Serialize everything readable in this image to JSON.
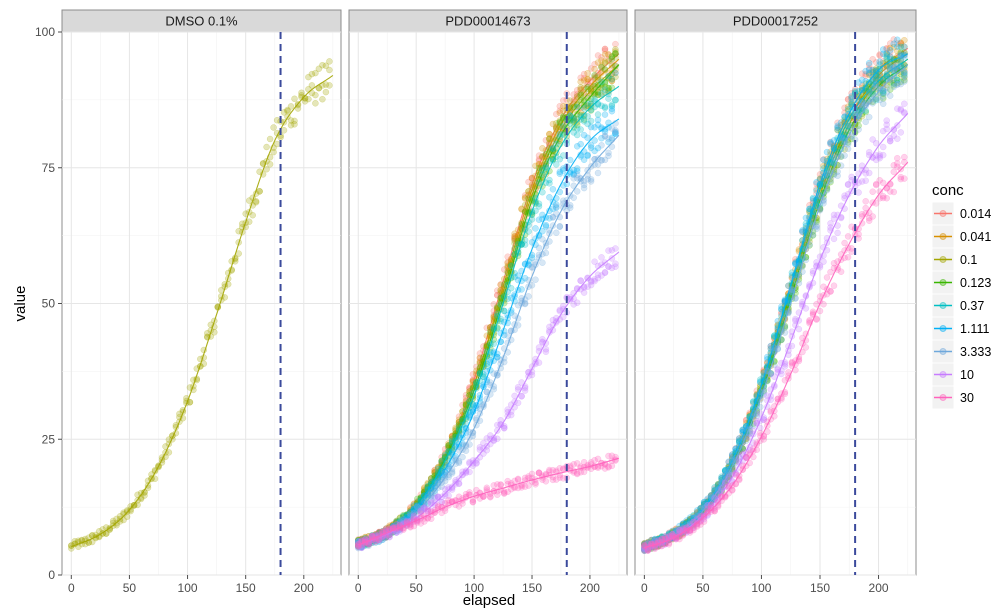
{
  "chart_data": {
    "type": "scatter",
    "title": "",
    "xlabel": "elapsed",
    "ylabel": "value",
    "xlim": [
      -8,
      232
    ],
    "ylim": [
      0,
      100
    ],
    "x_ticks": [
      0,
      50,
      100,
      150,
      200
    ],
    "y_ticks": [
      0,
      25,
      50,
      75,
      100
    ],
    "x_tick_labels": [
      "0",
      "50",
      "100",
      "150",
      "200"
    ],
    "y_tick_labels": [
      "0",
      "25",
      "50",
      "75",
      "100"
    ],
    "grid": true,
    "vline_x": 180,
    "vline_color": "#3b4a9c",
    "legend": {
      "title": "conc",
      "position": "right",
      "entries": [
        {
          "label": "0.014",
          "color": "#F8766D"
        },
        {
          "label": "0.041",
          "color": "#D89000"
        },
        {
          "label": "0.1",
          "color": "#A3A500"
        },
        {
          "label": "0.123",
          "color": "#39B600"
        },
        {
          "label": "0.37",
          "color": "#00BFC4"
        },
        {
          "label": "1.111",
          "color": "#00B0F6"
        },
        {
          "label": "3.333",
          "color": "#6FA8DC"
        },
        {
          "label": "10",
          "color": "#C77CFF"
        },
        {
          "label": "30",
          "color": "#FF62BC"
        }
      ]
    },
    "panels": [
      {
        "strip": "DMSO 0.1%",
        "series": [
          {
            "conc": "0.1",
            "color": "#A3A500",
            "fit": [
              [
                0,
                5.2
              ],
              [
                25,
                7.5
              ],
              [
                50,
                12
              ],
              [
                75,
                20
              ],
              [
                100,
                32
              ],
              [
                125,
                48
              ],
              [
                150,
                65
              ],
              [
                175,
                80
              ],
              [
                200,
                88
              ],
              [
                225,
                92
              ]
            ]
          }
        ]
      },
      {
        "strip": "PDD00014673",
        "series": [
          {
            "conc": "0.014",
            "color": "#F8766D",
            "fit": [
              [
                0,
                5.8
              ],
              [
                25,
                8.0
              ],
              [
                50,
                13
              ],
              [
                75,
                22
              ],
              [
                100,
                36
              ],
              [
                125,
                54
              ],
              [
                150,
                72
              ],
              [
                175,
                84
              ],
              [
                200,
                91
              ],
              [
                225,
                96
              ]
            ]
          },
          {
            "conc": "0.041",
            "color": "#D89000",
            "fit": [
              [
                0,
                5.8
              ],
              [
                25,
                8.0
              ],
              [
                50,
                13
              ],
              [
                75,
                22
              ],
              [
                100,
                35
              ],
              [
                125,
                53
              ],
              [
                150,
                71
              ],
              [
                175,
                83
              ],
              [
                200,
                90
              ],
              [
                225,
                95
              ]
            ]
          },
          {
            "conc": "0.1",
            "color": "#A3A500",
            "fit": [
              [
                0,
                5.7
              ],
              [
                25,
                7.9
              ],
              [
                50,
                12.8
              ],
              [
                75,
                21.5
              ],
              [
                100,
                35
              ],
              [
                125,
                52
              ],
              [
                150,
                70
              ],
              [
                175,
                82
              ],
              [
                200,
                89
              ],
              [
                225,
                94
              ]
            ]
          },
          {
            "conc": "0.123",
            "color": "#39B600",
            "fit": [
              [
                0,
                5.7
              ],
              [
                25,
                7.9
              ],
              [
                50,
                12.8
              ],
              [
                75,
                21.5
              ],
              [
                100,
                34
              ],
              [
                125,
                51
              ],
              [
                150,
                69
              ],
              [
                175,
                81
              ],
              [
                200,
                88
              ],
              [
                225,
                94
              ]
            ]
          },
          {
            "conc": "0.37",
            "color": "#00BFC4",
            "fit": [
              [
                0,
                5.6
              ],
              [
                25,
                7.8
              ],
              [
                50,
                12.5
              ],
              [
                75,
                21
              ],
              [
                100,
                33
              ],
              [
                125,
                50
              ],
              [
                150,
                67
              ],
              [
                175,
                79
              ],
              [
                200,
                86
              ],
              [
                225,
                90
              ]
            ]
          },
          {
            "conc": "1.111",
            "color": "#00B0F6",
            "fit": [
              [
                0,
                5.6
              ],
              [
                25,
                7.7
              ],
              [
                50,
                12
              ],
              [
                75,
                19.5
              ],
              [
                100,
                30
              ],
              [
                125,
                45
              ],
              [
                150,
                60
              ],
              [
                175,
                72
              ],
              [
                200,
                80
              ],
              [
                225,
                84
              ]
            ]
          },
          {
            "conc": "3.333",
            "color": "#6FA8DC",
            "fit": [
              [
                0,
                5.5
              ],
              [
                25,
                7.5
              ],
              [
                50,
                11.5
              ],
              [
                75,
                18
              ],
              [
                100,
                27
              ],
              [
                125,
                40
              ],
              [
                150,
                55
              ],
              [
                175,
                67
              ],
              [
                200,
                75
              ],
              [
                225,
                81
              ]
            ]
          },
          {
            "conc": "10",
            "color": "#C77CFF",
            "fit": [
              [
                0,
                5.5
              ],
              [
                25,
                7.5
              ],
              [
                50,
                10.5
              ],
              [
                75,
                15
              ],
              [
                100,
                21
              ],
              [
                125,
                28
              ],
              [
                150,
                38
              ],
              [
                175,
                48
              ],
              [
                200,
                55
              ],
              [
                225,
                59.5
              ]
            ]
          },
          {
            "conc": "30",
            "color": "#FF62BC",
            "fit": [
              [
                0,
                5.5
              ],
              [
                25,
                7.8
              ],
              [
                50,
                10
              ],
              [
                75,
                12.5
              ],
              [
                100,
                14.5
              ],
              [
                125,
                16
              ],
              [
                150,
                17.5
              ],
              [
                175,
                18.8
              ],
              [
                200,
                20
              ],
              [
                225,
                21.5
              ]
            ]
          }
        ]
      },
      {
        "strip": "PDD00017252",
        "series": [
          {
            "conc": "0.014",
            "color": "#F8766D",
            "fit": [
              [
                0,
                5.2
              ],
              [
                25,
                7.5
              ],
              [
                50,
                12
              ],
              [
                75,
                21
              ],
              [
                100,
                35
              ],
              [
                125,
                53
              ],
              [
                150,
                72
              ],
              [
                175,
                85
              ],
              [
                200,
                93
              ],
              [
                225,
                97
              ]
            ]
          },
          {
            "conc": "0.041",
            "color": "#D89000",
            "fit": [
              [
                0,
                5.2
              ],
              [
                25,
                7.4
              ],
              [
                50,
                12
              ],
              [
                75,
                20.5
              ],
              [
                100,
                34.5
              ],
              [
                125,
                52.5
              ],
              [
                150,
                71
              ],
              [
                175,
                84
              ],
              [
                200,
                92
              ],
              [
                225,
                96
              ]
            ]
          },
          {
            "conc": "0.1",
            "color": "#A3A500",
            "fit": [
              [
                0,
                5.1
              ],
              [
                25,
                7.3
              ],
              [
                50,
                11.8
              ],
              [
                75,
                20
              ],
              [
                100,
                34
              ],
              [
                125,
                52
              ],
              [
                150,
                70
              ],
              [
                175,
                83
              ],
              [
                200,
                91
              ],
              [
                225,
                95
              ]
            ]
          },
          {
            "conc": "0.123",
            "color": "#39B600",
            "fit": [
              [
                0,
                5.1
              ],
              [
                25,
                7.3
              ],
              [
                50,
                11.8
              ],
              [
                75,
                20
              ],
              [
                100,
                33.5
              ],
              [
                125,
                51
              ],
              [
                150,
                69
              ],
              [
                175,
                82
              ],
              [
                200,
                90
              ],
              [
                225,
                94
              ]
            ]
          },
          {
            "conc": "0.37",
            "color": "#00BFC4",
            "fit": [
              [
                0,
                5.2
              ],
              [
                25,
                7.5
              ],
              [
                50,
                12.2
              ],
              [
                75,
                21
              ],
              [
                100,
                35
              ],
              [
                125,
                53
              ],
              [
                150,
                71
              ],
              [
                175,
                84
              ],
              [
                200,
                91
              ],
              [
                225,
                95
              ]
            ]
          },
          {
            "conc": "1.111",
            "color": "#00B0F6",
            "fit": [
              [
                0,
                5.2
              ],
              [
                25,
                7.5
              ],
              [
                50,
                12.2
              ],
              [
                75,
                21
              ],
              [
                100,
                35
              ],
              [
                125,
                53.5
              ],
              [
                150,
                72
              ],
              [
                175,
                85
              ],
              [
                200,
                93
              ],
              [
                225,
                96
              ]
            ]
          },
          {
            "conc": "3.333",
            "color": "#6FA8DC",
            "fit": [
              [
                0,
                5.1
              ],
              [
                25,
                7.3
              ],
              [
                50,
                11.8
              ],
              [
                75,
                20
              ],
              [
                100,
                33
              ],
              [
                125,
                50
              ],
              [
                150,
                68
              ],
              [
                175,
                81
              ],
              [
                200,
                89
              ],
              [
                225,
                94
              ]
            ]
          },
          {
            "conc": "10",
            "color": "#C77CFF",
            "fit": [
              [
                0,
                5
              ],
              [
                25,
                7
              ],
              [
                50,
                11
              ],
              [
                75,
                18
              ],
              [
                100,
                29
              ],
              [
                125,
                43
              ],
              [
                150,
                58
              ],
              [
                175,
                70
              ],
              [
                200,
                79
              ],
              [
                225,
                85
              ]
            ]
          },
          {
            "conc": "30",
            "color": "#FF62BC",
            "fit": [
              [
                0,
                5
              ],
              [
                25,
                6.8
              ],
              [
                50,
                10.5
              ],
              [
                75,
                16.5
              ],
              [
                100,
                25.5
              ],
              [
                125,
                37
              ],
              [
                150,
                50
              ],
              [
                175,
                61
              ],
              [
                200,
                70
              ],
              [
                225,
                76
              ]
            ]
          }
        ]
      }
    ]
  }
}
